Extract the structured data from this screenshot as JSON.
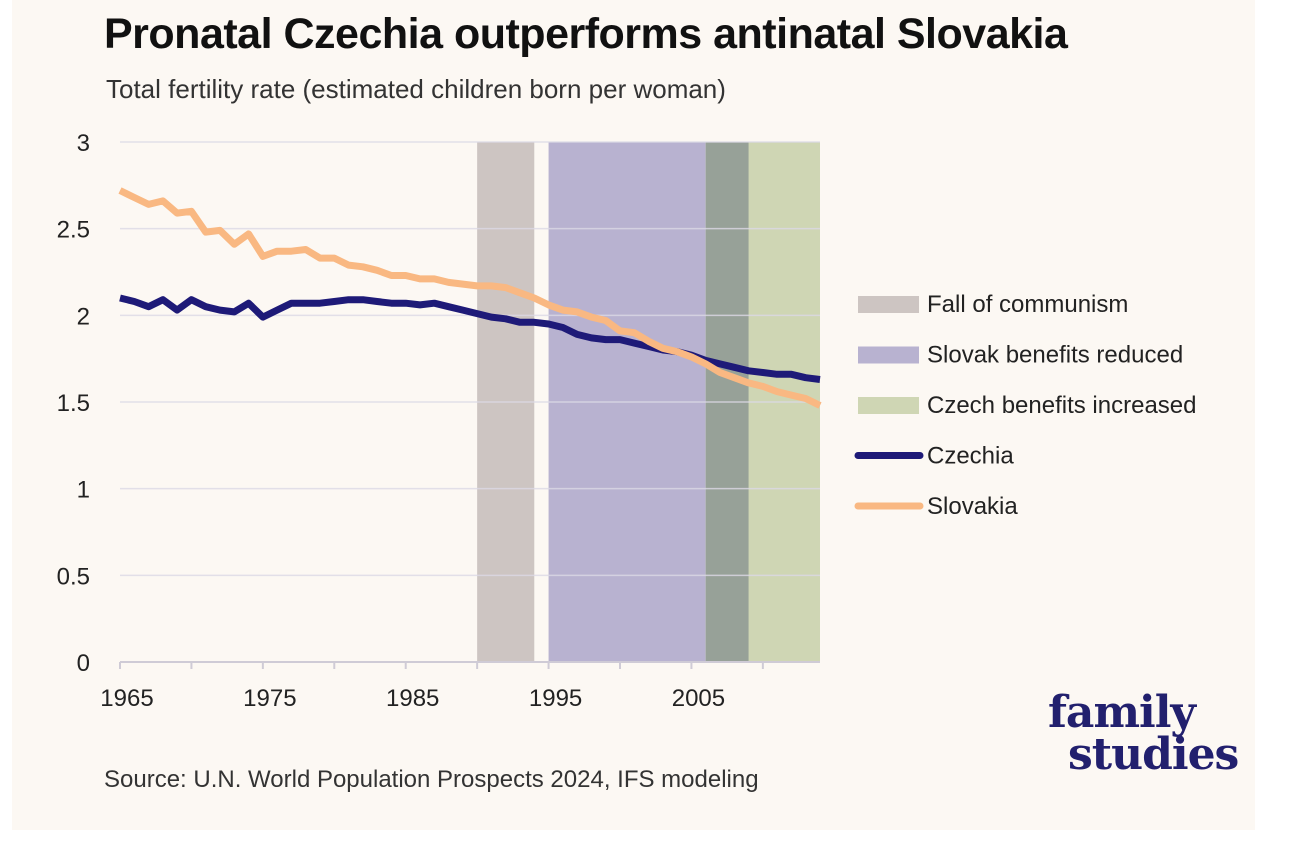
{
  "chart_data": {
    "type": "line",
    "title": "Pronatal Czechia outperforms antinatal Slovakia",
    "subtitle": "Total fertility rate (estimated children born per woman)",
    "source": "Source: U.N. World Population Prospects 2024, IFS modeling",
    "xlim": [
      1965,
      2014
    ],
    "ylim": [
      0,
      3
    ],
    "x_ticks": [
      "1965",
      "1975",
      "1985",
      "1995",
      "2005"
    ],
    "x_tick_values": [
      1965,
      1975,
      1985,
      1995,
      2005
    ],
    "y_ticks": [
      "0",
      "0.5",
      "1",
      "1.5",
      "2",
      "2.5",
      "3"
    ],
    "y_tick_values": [
      0,
      0.5,
      1,
      1.5,
      2,
      2.5,
      3
    ],
    "grid": true,
    "legend_position": "right",
    "shaded_periods": [
      {
        "name": "Fall of communism",
        "start": 1990,
        "end": 1994,
        "color": "#cdc5c2"
      },
      {
        "name": "Slovak benefits reduced",
        "start": 1995,
        "end": 2006,
        "color": "#b8b2d0"
      },
      {
        "name": "Czech benefits increased",
        "start": 2006,
        "end": 2014,
        "color": "#cfd6b4"
      }
    ],
    "overlap": {
      "start": 2006,
      "end": 2009,
      "color": "#97a198"
    },
    "x": [
      1965,
      1966,
      1967,
      1968,
      1969,
      1970,
      1971,
      1972,
      1973,
      1974,
      1975,
      1976,
      1977,
      1978,
      1979,
      1980,
      1981,
      1982,
      1983,
      1984,
      1985,
      1986,
      1987,
      1988,
      1989,
      1990,
      1991,
      1992,
      1993,
      1994,
      1995,
      1996,
      1997,
      1998,
      1999,
      2000,
      2001,
      2002,
      2003,
      2004,
      2005,
      2006,
      2007,
      2008,
      2009,
      2010,
      2011,
      2012,
      2013,
      2014
    ],
    "series": [
      {
        "name": "Czechia",
        "color": "#1e1a78",
        "values": [
          2.1,
          2.08,
          2.05,
          2.09,
          2.03,
          2.09,
          2.05,
          2.03,
          2.02,
          2.07,
          1.99,
          2.03,
          2.07,
          2.07,
          2.07,
          2.08,
          2.09,
          2.09,
          2.08,
          2.07,
          2.07,
          2.06,
          2.07,
          2.05,
          2.03,
          2.01,
          1.99,
          1.98,
          1.96,
          1.96,
          1.95,
          1.93,
          1.89,
          1.87,
          1.86,
          1.86,
          1.84,
          1.82,
          1.8,
          1.79,
          1.77,
          1.74,
          1.72,
          1.7,
          1.68,
          1.67,
          1.66,
          1.66,
          1.64,
          1.63
        ]
      },
      {
        "name": "Slovakia",
        "color": "#f9b882",
        "values": [
          2.72,
          2.68,
          2.64,
          2.66,
          2.59,
          2.6,
          2.48,
          2.49,
          2.41,
          2.47,
          2.34,
          2.37,
          2.37,
          2.38,
          2.33,
          2.33,
          2.29,
          2.28,
          2.26,
          2.23,
          2.23,
          2.21,
          2.21,
          2.19,
          2.18,
          2.17,
          2.17,
          2.16,
          2.13,
          2.1,
          2.06,
          2.03,
          2.02,
          1.99,
          1.97,
          1.91,
          1.9,
          1.85,
          1.81,
          1.79,
          1.76,
          1.72,
          1.67,
          1.64,
          1.61,
          1.59,
          1.56,
          1.54,
          1.52,
          1.48
        ]
      }
    ]
  },
  "brand": {
    "line1": "family",
    "line2": "studies"
  }
}
